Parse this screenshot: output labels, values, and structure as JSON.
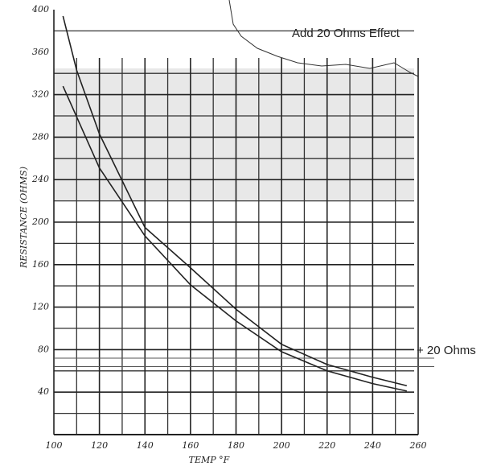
{
  "chart_data": {
    "type": "line",
    "annotations": [
      "Add 20 Ohms Effect",
      "+ 20 Ohms"
    ],
    "xlabel": "TEMP °F",
    "ylabel": "RESISTANCE (OHMS)",
    "series": [
      {
        "color": "#222",
        "x": [
          104,
          110,
          120,
          140,
          160,
          180,
          200,
          220,
          240,
          255
        ],
        "values": [
          394,
          343,
          283,
          195,
          157,
          118,
          85,
          66,
          54,
          46
        ]
      },
      {
        "color": "#222",
        "x": [
          104,
          120,
          140,
          160,
          180,
          200,
          220,
          240,
          255
        ],
        "values": [
          328,
          251,
          187,
          141,
          107,
          78,
          60,
          48,
          41
        ]
      }
    ],
    "hlines": [
      72,
      64
    ],
    "xlim": [
      100,
      260
    ],
    "xticks": [
      100,
      120,
      140,
      160,
      180,
      200,
      220,
      240,
      260
    ],
    "ylim": [
      0,
      400
    ],
    "yticks": [
      40,
      80,
      120,
      160,
      200,
      240,
      280,
      320,
      360,
      400
    ],
    "grid": true
  }
}
